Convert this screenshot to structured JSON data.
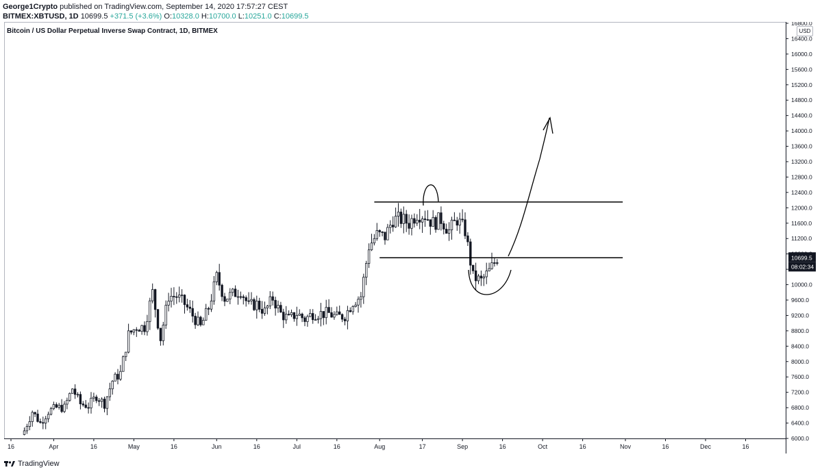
{
  "header": {
    "author": "George1Crypto",
    "published": "published on TradingView.com, September 14, 2020 17:57:27 CEST",
    "symbol": "BITMEX:XBTUSD, 1D",
    "last": "10699.5",
    "change": "+371.5 (+3.6%)",
    "open_label": "O:",
    "open": "10328.0",
    "high_label": "H:",
    "high": "10700.0",
    "low_label": "L:",
    "low": "10251.0",
    "close_label": "C:",
    "close": "10699.5"
  },
  "footer": {
    "brand": "TradingView"
  },
  "currency_badge": "USD",
  "colors": {
    "candle": "#131722",
    "text": "#131722",
    "grid": "#e0e3eb",
    "up_text": "#26a69a"
  },
  "chart_data": {
    "type": "candlestick",
    "title": "Bitcoin / US Dollar Perpetual Inverse Swap Contract, 1D, BITMEX",
    "xlabel": "",
    "ylabel": "",
    "ylim": [
      6000,
      16800
    ],
    "y_ticks": [
      16800,
      16400,
      16000,
      15600,
      15200,
      14800,
      14400,
      14000,
      13600,
      13200,
      12800,
      12400,
      12000,
      11600,
      11200,
      10800,
      10400,
      10000,
      9600,
      9200,
      8800,
      8400,
      8000,
      7600,
      7200,
      6800,
      6400,
      6000
    ],
    "x_ticks": [
      {
        "label": "16",
        "date": "2020-03-16"
      },
      {
        "label": "Apr",
        "date": "2020-04-01"
      },
      {
        "label": "16",
        "date": "2020-04-16"
      },
      {
        "label": "May",
        "date": "2020-05-01"
      },
      {
        "label": "16",
        "date": "2020-05-16"
      },
      {
        "label": "Jun",
        "date": "2020-06-01"
      },
      {
        "label": "16",
        "date": "2020-06-16"
      },
      {
        "label": "Jul",
        "date": "2020-07-01"
      },
      {
        "label": "16",
        "date": "2020-07-16"
      },
      {
        "label": "Aug",
        "date": "2020-08-01"
      },
      {
        "label": "17",
        "date": "2020-08-17"
      },
      {
        "label": "Sep",
        "date": "2020-09-01"
      },
      {
        "label": "16",
        "date": "2020-09-16"
      },
      {
        "label": "Oct",
        "date": "2020-10-01"
      },
      {
        "label": "16",
        "date": "2020-10-16"
      },
      {
        "label": "Nov",
        "date": "2020-11-01"
      },
      {
        "label": "16",
        "date": "2020-11-16"
      },
      {
        "label": "Dec",
        "date": "2020-12-01"
      },
      {
        "label": "16",
        "date": "2020-12-16"
      }
    ],
    "price_label": "10699.5",
    "countdown_label": "08:02:34",
    "close_series": [
      {
        "date": "2020-03-21",
        "close": 6200
      },
      {
        "date": "2020-03-24",
        "close": 6700
      },
      {
        "date": "2020-03-27",
        "close": 6400
      },
      {
        "date": "2020-03-30",
        "close": 6700
      },
      {
        "date": "2020-04-02",
        "close": 6800
      },
      {
        "date": "2020-04-05",
        "close": 6800
      },
      {
        "date": "2020-04-08",
        "close": 7300
      },
      {
        "date": "2020-04-11",
        "close": 6900
      },
      {
        "date": "2020-04-14",
        "close": 6850
      },
      {
        "date": "2020-04-17",
        "close": 7100
      },
      {
        "date": "2020-04-20",
        "close": 6900
      },
      {
        "date": "2020-04-23",
        "close": 7500
      },
      {
        "date": "2020-04-26",
        "close": 7700
      },
      {
        "date": "2020-04-29",
        "close": 8700
      },
      {
        "date": "2020-05-02",
        "close": 8900
      },
      {
        "date": "2020-05-05",
        "close": 8900
      },
      {
        "date": "2020-05-08",
        "close": 9800
      },
      {
        "date": "2020-05-11",
        "close": 8600
      },
      {
        "date": "2020-05-14",
        "close": 9700
      },
      {
        "date": "2020-05-17",
        "close": 9700
      },
      {
        "date": "2020-05-20",
        "close": 9500
      },
      {
        "date": "2020-05-23",
        "close": 9200
      },
      {
        "date": "2020-05-26",
        "close": 8900
      },
      {
        "date": "2020-05-29",
        "close": 9400
      },
      {
        "date": "2020-06-01",
        "close": 10200
      },
      {
        "date": "2020-06-04",
        "close": 9650
      },
      {
        "date": "2020-06-07",
        "close": 9750
      },
      {
        "date": "2020-06-10",
        "close": 9850
      },
      {
        "date": "2020-06-13",
        "close": 9450
      },
      {
        "date": "2020-06-16",
        "close": 9500
      },
      {
        "date": "2020-06-19",
        "close": 9300
      },
      {
        "date": "2020-06-22",
        "close": 9650
      },
      {
        "date": "2020-06-25",
        "close": 9250
      },
      {
        "date": "2020-06-28",
        "close": 9100
      },
      {
        "date": "2020-07-01",
        "close": 9250
      },
      {
        "date": "2020-07-04",
        "close": 9100
      },
      {
        "date": "2020-07-07",
        "close": 9250
      },
      {
        "date": "2020-07-10",
        "close": 9250
      },
      {
        "date": "2020-07-13",
        "close": 9250
      },
      {
        "date": "2020-07-16",
        "close": 9150
      },
      {
        "date": "2020-07-19",
        "close": 9200
      },
      {
        "date": "2020-07-22",
        "close": 9550
      },
      {
        "date": "2020-07-25",
        "close": 9700
      },
      {
        "date": "2020-07-28",
        "close": 11000
      },
      {
        "date": "2020-07-31",
        "close": 11300
      },
      {
        "date": "2020-08-03",
        "close": 11250
      },
      {
        "date": "2020-08-06",
        "close": 11700
      },
      {
        "date": "2020-08-09",
        "close": 11700
      },
      {
        "date": "2020-08-12",
        "close": 11600
      },
      {
        "date": "2020-08-15",
        "close": 11850
      },
      {
        "date": "2020-08-18",
        "close": 11800
      },
      {
        "date": "2020-08-21",
        "close": 11600
      },
      {
        "date": "2020-08-24",
        "close": 11700
      },
      {
        "date": "2020-08-27",
        "close": 11400
      },
      {
        "date": "2020-08-30",
        "close": 11700
      },
      {
        "date": "2020-09-02",
        "close": 11400
      },
      {
        "date": "2020-09-05",
        "close": 10200
      },
      {
        "date": "2020-09-08",
        "close": 10100
      },
      {
        "date": "2020-09-11",
        "close": 10350
      },
      {
        "date": "2020-09-14",
        "close": 10699.5
      }
    ]
  },
  "annotations": [
    {
      "type": "hline",
      "label": "resistance",
      "price": 12150,
      "from": "2020-07-30",
      "to": "2020-10-31"
    },
    {
      "type": "hline",
      "label": "support",
      "price": 10700,
      "from": "2020-08-01",
      "to": "2020-10-31"
    }
  ]
}
